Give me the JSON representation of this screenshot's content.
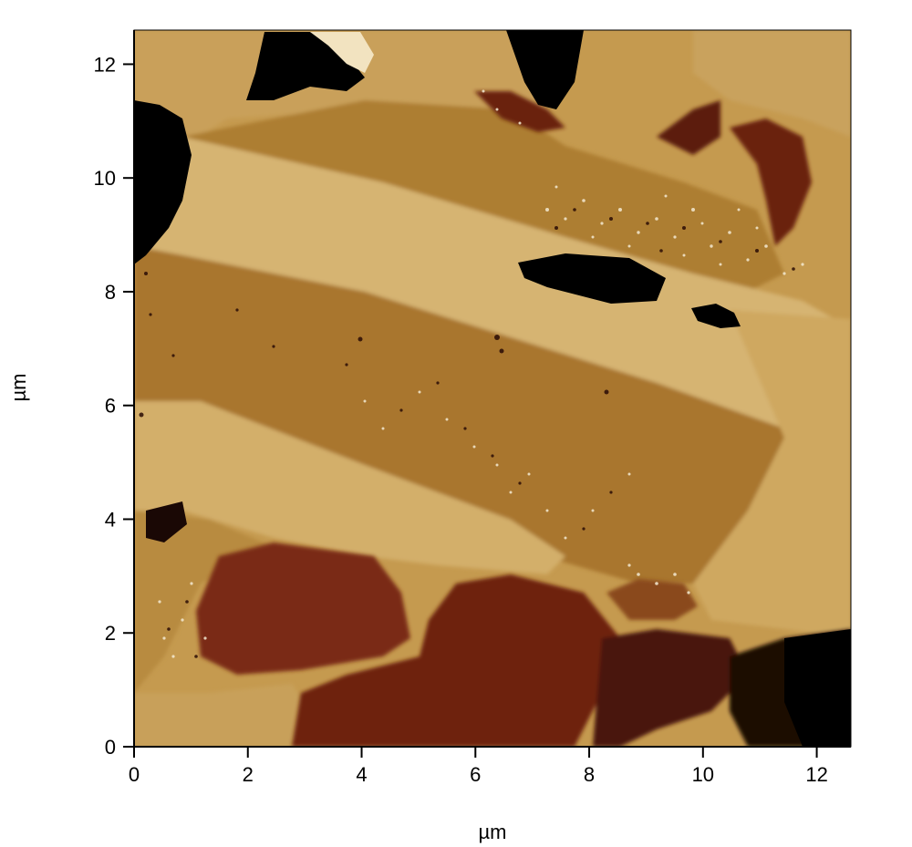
{
  "chart_data": {
    "type": "heatmap",
    "xlabel": "µm",
    "ylabel": "µm",
    "xlim": [
      0,
      12.6
    ],
    "ylim": [
      0,
      12.6
    ],
    "x_ticks": [
      "0",
      "2",
      "4",
      "6",
      "8",
      "10",
      "12"
    ],
    "y_ticks": [
      "0",
      "2",
      "4",
      "6",
      "8",
      "10",
      "12"
    ],
    "colormap": [
      "#000000",
      "#3a0d06",
      "#6b2210",
      "#8f5a1c",
      "#b98a3c",
      "#d6b470",
      "#f3e6c4"
    ]
  }
}
